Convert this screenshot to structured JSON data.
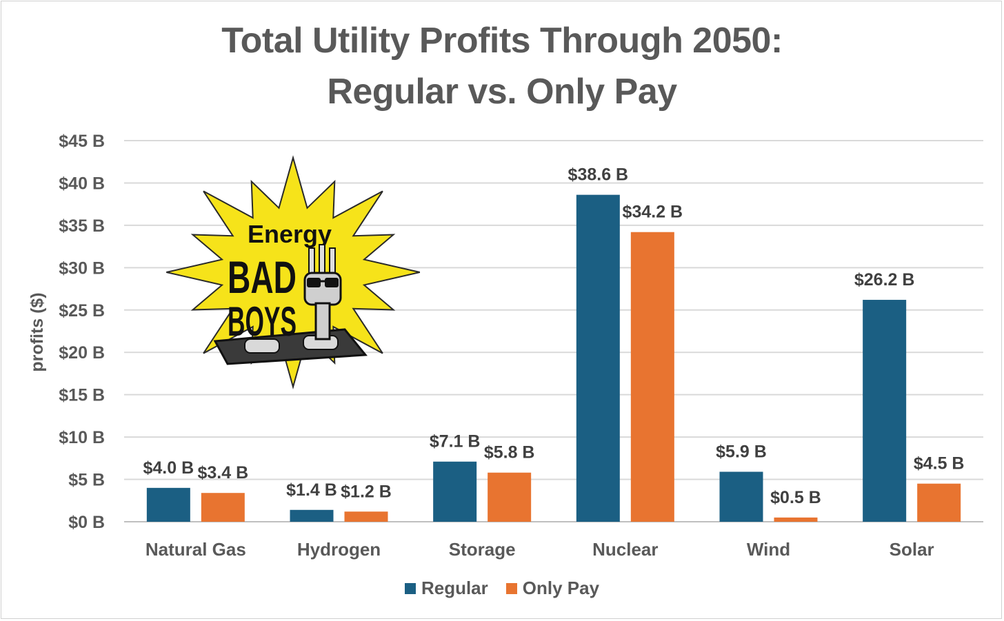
{
  "chart_data": {
    "type": "bar",
    "title_line1": "Total Utility Profits Through 2050:",
    "title_line2": "Regular vs. Only Pay",
    "ylabel": "profits ($)",
    "xlabel": "",
    "ylim": [
      0,
      45
    ],
    "y_ticks": [
      0,
      5,
      10,
      15,
      20,
      25,
      30,
      35,
      40,
      45
    ],
    "y_tick_labels": [
      "$0 B",
      "$5 B",
      "$10 B",
      "$15 B",
      "$20 B",
      "$25 B",
      "$30 B",
      "$35 B",
      "$40 B",
      "$45 B"
    ],
    "grid": true,
    "legend_position": "bottom",
    "categories": [
      "Natural Gas",
      "Hydrogen",
      "Storage",
      "Nuclear",
      "Wind",
      "Solar"
    ],
    "series": [
      {
        "name": "Regular",
        "color": "#1b5f83",
        "values": [
          4.0,
          1.4,
          7.1,
          38.6,
          5.9,
          26.2
        ],
        "labels": [
          "$4.0 B",
          "$1.4 B",
          "$7.1 B",
          "$38.6 B",
          "$5.9 B",
          "$26.2 B"
        ]
      },
      {
        "name": "Only Pay",
        "color": "#e87430",
        "values": [
          3.4,
          1.2,
          5.8,
          34.2,
          0.5,
          4.5
        ],
        "labels": [
          "$3.4 B",
          "$1.2 B",
          "$5.8 B",
          "$34.2 B",
          "$0.5 B",
          "$4.5 B"
        ]
      }
    ]
  },
  "logo": {
    "icon": "energy-bad-boys-starburst-logo",
    "line1": "Energy",
    "line2": "BAD",
    "line3": "BOYS"
  }
}
